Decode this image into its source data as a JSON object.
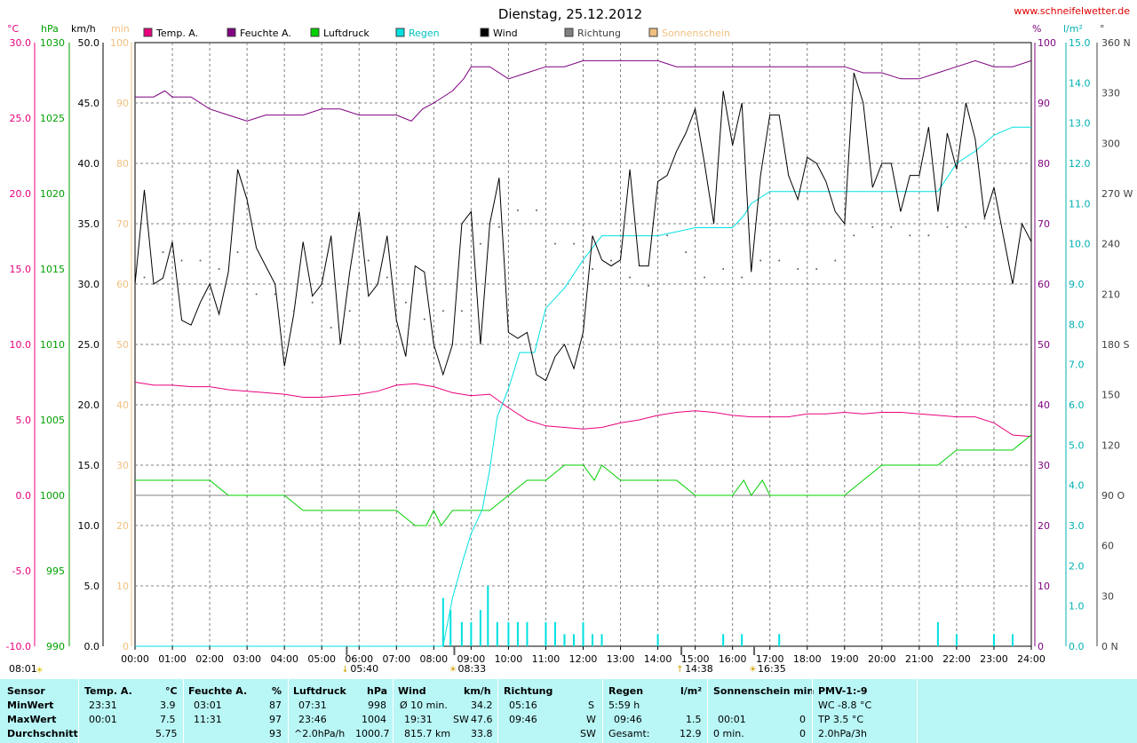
{
  "title": "Dienstag, 25.12.2012",
  "website": "www.schneifelwetter.de",
  "legend": [
    {
      "label": "Temp. A.",
      "color": "#e8007d"
    },
    {
      "label": "Feuchte A.",
      "color": "#7f007f"
    },
    {
      "label": "Luftdruck",
      "color": "#00d000"
    },
    {
      "label": "Regen",
      "color": "#00e0e0"
    },
    {
      "label": "Wind",
      "color": "#000000"
    },
    {
      "label": "Richtung",
      "color": "#808080"
    },
    {
      "label": "Sonnenschein",
      "color": "#f0c080"
    }
  ],
  "axes": {
    "temp": {
      "unit": "°C",
      "color": "#e8007d",
      "ticks": [
        "30.0",
        "25.0",
        "20.0",
        "15.0",
        "10.0",
        "5.0",
        "0.0",
        "-5.0",
        "-10.0"
      ]
    },
    "pressure": {
      "unit": "hPa",
      "color": "#00a000",
      "ticks": [
        "1030",
        "1025",
        "1020",
        "1015",
        "1010",
        "1005",
        "1000",
        "995",
        "990"
      ]
    },
    "wind": {
      "unit": "km/h",
      "color": "#000000",
      "ticks": [
        "50.0",
        "45.0",
        "40.0",
        "35.0",
        "30.0",
        "25.0",
        "20.0",
        "15.0",
        "10.0",
        "5.0",
        "0.0"
      ]
    },
    "sun": {
      "unit": "min",
      "color": "#f0c080",
      "ticks": [
        "100",
        "90",
        "80",
        "70",
        "60",
        "50",
        "40",
        "30",
        "20",
        "10",
        "0"
      ]
    },
    "humidity": {
      "unit": "%",
      "color": "#7f007f",
      "ticks": [
        "100",
        "90",
        "80",
        "70",
        "60",
        "50",
        "40",
        "30",
        "20",
        "10",
        "0"
      ]
    },
    "rain": {
      "unit": "l/m²",
      "color": "#00c0c0",
      "ticks": [
        "15.0",
        "14.0",
        "13.0",
        "12.0",
        "11.0",
        "10.0",
        "9.0",
        "8.0",
        "7.0",
        "6.0",
        "5.0",
        "4.0",
        "3.0",
        "2.0",
        "1.0",
        "0.0"
      ]
    },
    "direction": {
      "unit": "°",
      "color": "#404040",
      "ticks": [
        "360 N",
        "330",
        "300",
        "270 W",
        "240",
        "210",
        "180 S",
        "150",
        "120",
        "90 O",
        "60",
        "30",
        "0 N"
      ]
    }
  },
  "time_labels": [
    "00:00",
    "01:00",
    "02:00",
    "03:00",
    "04:00",
    "05:00",
    "06:00",
    "07:00",
    "08:00",
    "09:00",
    "10:00",
    "11:00",
    "12:00",
    "13:00",
    "14:00",
    "15:00",
    "16:00",
    "17:00",
    "18:00",
    "19:00",
    "20:00",
    "21:00",
    "22:00",
    "23:00",
    "24:00"
  ],
  "time_markers": [
    {
      "label": "05:40",
      "time": 5.67,
      "sym": "↓"
    },
    {
      "label": "08:33",
      "time": 8.55,
      "sym": "☀"
    },
    {
      "label": "14:38",
      "time": 14.63,
      "sym": "↑"
    },
    {
      "label": "16:35",
      "time": 16.58,
      "sym": "☀"
    }
  ],
  "corner_time": "08:01",
  "chart_data": {
    "type": "line",
    "x_unit": "hour",
    "series": [
      {
        "name": "Temp. A.",
        "axis": "temp",
        "color": "#e8007d",
        "x": [
          0,
          0.5,
          1,
          1.5,
          2,
          2.5,
          3,
          3.5,
          4,
          4.5,
          5,
          5.5,
          6,
          6.5,
          7,
          7.5,
          8,
          8.5,
          9,
          9.5,
          10,
          10.5,
          11,
          11.5,
          12,
          12.5,
          13,
          13.5,
          14,
          14.5,
          15,
          15.5,
          16,
          16.5,
          17,
          17.5,
          18,
          18.5,
          19,
          19.5,
          20,
          20.5,
          21,
          21.5,
          22,
          22.5,
          23,
          23.5,
          24
        ],
        "y": [
          7.5,
          7.3,
          7.3,
          7.2,
          7.2,
          7.0,
          6.9,
          6.8,
          6.7,
          6.5,
          6.5,
          6.6,
          6.7,
          6.9,
          7.3,
          7.4,
          7.2,
          6.8,
          6.6,
          6.7,
          5.8,
          5.0,
          4.6,
          4.5,
          4.4,
          4.5,
          4.8,
          5.0,
          5.3,
          5.5,
          5.6,
          5.5,
          5.3,
          5.2,
          5.2,
          5.2,
          5.4,
          5.4,
          5.5,
          5.4,
          5.5,
          5.5,
          5.4,
          5.3,
          5.2,
          5.2,
          4.8,
          4.0,
          3.9
        ]
      },
      {
        "name": "Feuchte A.",
        "axis": "humidity",
        "color": "#7f007f",
        "x": [
          0,
          0.5,
          0.8,
          1,
          1.5,
          2,
          2.5,
          3,
          3.5,
          4,
          4.5,
          5,
          5.5,
          6,
          6.5,
          7,
          7.4,
          7.7,
          8,
          8.5,
          8.8,
          9,
          9.5,
          10,
          10.5,
          11,
          11.5,
          12,
          12.5,
          13,
          13.5,
          14,
          14.5,
          15,
          15.5,
          16,
          16.5,
          17,
          17.5,
          18,
          18.5,
          19,
          19.5,
          20,
          20.5,
          21,
          21.5,
          22,
          22.5,
          23,
          23.5,
          24
        ],
        "y": [
          91,
          91,
          92,
          91,
          91,
          89,
          88,
          87,
          88,
          88,
          88,
          89,
          89,
          88,
          88,
          88,
          87,
          89,
          90,
          92,
          94,
          96,
          96,
          94,
          95,
          96,
          96,
          97,
          97,
          97,
          97,
          97,
          96,
          96,
          96,
          96,
          96,
          96,
          96,
          96,
          96,
          96,
          95,
          95,
          94,
          94,
          95,
          96,
          97,
          96,
          96,
          97
        ]
      },
      {
        "name": "Luftdruck",
        "axis": "pressure",
        "color": "#00d000",
        "x": [
          0,
          1,
          2,
          2.5,
          3,
          4,
          4.5,
          5,
          6,
          7,
          7.5,
          7.8,
          8,
          8.2,
          8.5,
          9,
          9.5,
          10,
          10.5,
          11,
          11.5,
          12,
          12.3,
          12.5,
          13,
          14,
          14.5,
          15,
          16,
          16.3,
          16.5,
          16.8,
          17,
          18,
          19,
          19.5,
          20,
          21,
          21.5,
          22,
          23,
          23.5,
          24
        ],
        "y": [
          1001,
          1001,
          1001,
          1000,
          1000,
          1000,
          999,
          999,
          999,
          999,
          998,
          998,
          999,
          998,
          999,
          999,
          999,
          1000,
          1001,
          1001,
          1002,
          1002,
          1001,
          1002,
          1001,
          1001,
          1001,
          1000,
          1000,
          1001,
          1000,
          1001,
          1000,
          1000,
          1000,
          1001,
          1002,
          1002,
          1002,
          1003,
          1003,
          1003,
          1004
        ]
      },
      {
        "name": "Regen",
        "axis": "rain",
        "color": "#00e0e0",
        "x": [
          0,
          8.25,
          8.5,
          8.8,
          9,
          9.3,
          9.5,
          9.7,
          10,
          10.3,
          10.7,
          11,
          11.5,
          12,
          12.5,
          13,
          14,
          15,
          16,
          16.3,
          16.5,
          17,
          18,
          19,
          20,
          21,
          21.5,
          22,
          22.5,
          23,
          23.5,
          24
        ],
        "y": [
          0,
          0,
          1.2,
          2.2,
          2.8,
          3.4,
          4.4,
          5.7,
          6.4,
          7.3,
          7.3,
          8.4,
          8.9,
          9.6,
          10.2,
          10.2,
          10.2,
          10.4,
          10.4,
          10.7,
          11.0,
          11.3,
          11.3,
          11.3,
          11.3,
          11.3,
          11.3,
          12.0,
          12.3,
          12.7,
          12.9,
          12.9
        ]
      },
      {
        "name": "Wind",
        "axis": "wind",
        "color": "#000000",
        "x": [
          0,
          0.25,
          0.5,
          0.75,
          1,
          1.25,
          1.5,
          1.75,
          2,
          2.25,
          2.5,
          2.75,
          3,
          3.25,
          3.5,
          3.75,
          4,
          4.25,
          4.5,
          4.75,
          5,
          5.25,
          5.5,
          5.75,
          6,
          6.25,
          6.5,
          6.75,
          7,
          7.25,
          7.5,
          7.75,
          8,
          8.25,
          8.5,
          8.75,
          9,
          9.25,
          9.5,
          9.75,
          10,
          10.25,
          10.5,
          10.75,
          11,
          11.25,
          11.5,
          11.75,
          12,
          12.25,
          12.5,
          12.75,
          13,
          13.25,
          13.5,
          13.75,
          14,
          14.25,
          14.5,
          14.75,
          15,
          15.25,
          15.5,
          15.75,
          16,
          16.25,
          16.5,
          16.75,
          17,
          17.25,
          17.5,
          17.75,
          18,
          18.25,
          18.5,
          18.75,
          19,
          19.25,
          19.5,
          19.75,
          20,
          20.25,
          20.5,
          20.75,
          21,
          21.25,
          21.5,
          21.75,
          22,
          22.25,
          22.5,
          22.75,
          23,
          23.25,
          23.5,
          23.75,
          24
        ],
        "y": [
          30,
          37.8,
          30,
          30.5,
          33.5,
          27,
          26.6,
          28.5,
          30,
          27.5,
          31,
          39.5,
          37,
          33,
          31.5,
          30,
          23.2,
          27.5,
          33.5,
          29,
          30,
          34,
          25,
          31,
          36,
          29,
          30,
          34,
          27,
          24,
          31.5,
          31,
          25,
          22.5,
          25,
          35,
          36,
          25,
          35,
          38.8,
          26,
          25.5,
          26,
          22.5,
          22,
          24,
          25,
          23,
          26,
          34,
          32,
          31.5,
          32,
          39.5,
          31.5,
          31.5,
          38.5,
          39,
          41,
          42.5,
          44.5,
          40,
          35,
          46,
          41.5,
          45,
          31,
          39,
          44,
          44,
          39,
          37,
          40.5,
          40,
          38.5,
          36,
          35,
          47.5,
          45,
          38,
          40,
          40,
          36,
          39,
          39,
          43,
          36,
          42.5,
          39.5,
          45,
          42,
          35.5,
          38,
          34,
          30,
          35,
          33.5
        ]
      },
      {
        "name": "Richtung",
        "axis": "direction",
        "color": "#606060",
        "dots": true,
        "x": [
          0.25,
          0.75,
          1.25,
          1.75,
          2.25,
          2.75,
          3.25,
          3.75,
          4.25,
          4.75,
          5.25,
          5.75,
          6.25,
          6.75,
          7.25,
          7.75,
          8.25,
          8.75,
          9.25,
          9.75,
          10.25,
          10.75,
          11.25,
          11.75,
          12.25,
          12.75,
          13.25,
          13.75,
          14.25,
          14.75,
          15.25,
          15.75,
          16.25,
          16.75,
          17.25,
          17.75,
          18.25,
          18.75,
          19.25,
          19.75,
          20.25,
          20.75,
          21.25,
          21.75,
          22.25,
          22.75,
          23.25,
          23.75
        ],
        "y": [
          220,
          235,
          230,
          230,
          225,
          235,
          210,
          210,
          200,
          205,
          190,
          200,
          230,
          220,
          205,
          195,
          200,
          200,
          240,
          250,
          260,
          260,
          240,
          240,
          225,
          230,
          220,
          215,
          245,
          235,
          220,
          225,
          220,
          230,
          230,
          225,
          225,
          230,
          245,
          250,
          250,
          245,
          245,
          250,
          250,
          255,
          245,
          250
        ]
      },
      {
        "name": "Sonnenschein",
        "axis": "sun",
        "color": "#f0c080",
        "bars": true,
        "x": [],
        "y": []
      },
      {
        "name": "Regen (Intervall)",
        "axis": "rain",
        "color": "#00e0e0",
        "bars": true,
        "x": [
          8.25,
          8.45,
          8.75,
          9.0,
          9.25,
          9.45,
          9.7,
          10.0,
          10.25,
          10.5,
          11.0,
          11.25,
          11.5,
          11.75,
          12.0,
          12.25,
          12.5,
          14.0,
          15.75,
          16.25,
          17.25,
          21.5,
          22.0,
          23.0,
          23.5
        ],
        "y": [
          1.2,
          0.9,
          0.6,
          0.6,
          0.9,
          1.5,
          0.6,
          0.6,
          0.6,
          0.6,
          0.6,
          0.6,
          0.3,
          0.3,
          0.6,
          0.3,
          0.3,
          0.3,
          0.3,
          0.3,
          0.3,
          0.6,
          0.3,
          0.3,
          0.3
        ]
      }
    ],
    "grid": true,
    "xlim": [
      0,
      24
    ]
  },
  "footer": {
    "header": [
      "Sensor",
      "Temp. A.",
      "°C",
      "Feuchte A.",
      "%",
      "Luftdruck",
      "hPa",
      "Wind",
      "km/h",
      "Richtung",
      "Regen",
      "l/m²",
      "Sonnenschein min",
      "PMV-1:-9"
    ],
    "min_label": "MinWert",
    "max_label": "MaxWert",
    "avg_label": "Durchschnitt",
    "temp": {
      "min_time": "23:31",
      "min": "3.9",
      "max_time": "00:01",
      "max": "7.5",
      "avg": "5.75"
    },
    "hum": {
      "min_time": "03:01",
      "min": "87",
      "max_time": "11:31",
      "max": "97",
      "avg": "93"
    },
    "press": {
      "min_time": "07:31",
      "min": "998",
      "max_time": "23:46",
      "max": "1004",
      "trend": "^2.0hPa/h",
      "avg": "1000.7"
    },
    "wind": {
      "r1_label": "Ø 10 min.",
      "r1": "34.2",
      "r2_label": "19:31",
      "r2_dir": "SW",
      "r2": "47.6",
      "r3_label": "815.7 km",
      "r3": "33.8"
    },
    "dir": {
      "r1_time": "05:16",
      "r1": "S",
      "r2_time": "09:46",
      "r2": "W",
      "r3": "SW"
    },
    "rain": {
      "r1": "5:59 h",
      "r2_time": "09:46",
      "r2": "1.5",
      "r3_label": "Gesamt:",
      "r3": "12.9"
    },
    "sun": {
      "r2_time": "00:01",
      "r2": "0",
      "r3_label": "0 min.",
      "r3": "0"
    },
    "pmv": {
      "r1": "WC -8.8 °C",
      "r2": "TP 3.5 °C",
      "r3": "2.0hPa/3h"
    }
  }
}
